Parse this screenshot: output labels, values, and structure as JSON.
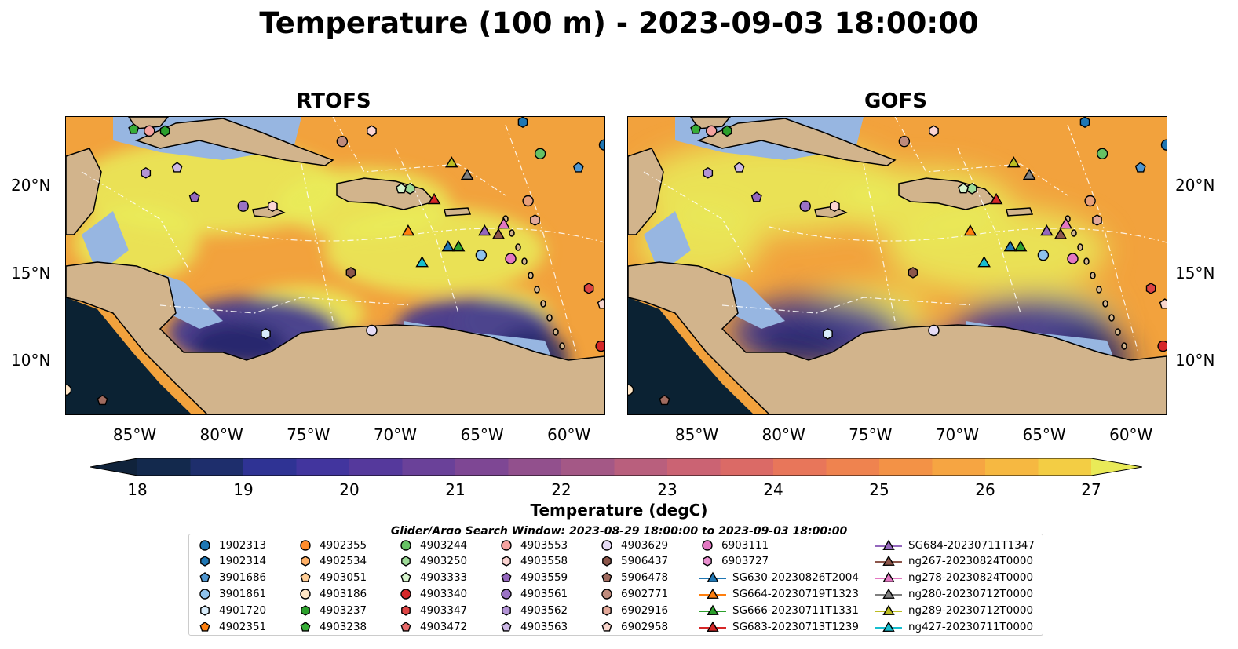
{
  "title": "Temperature (100 m) - 2023-09-03 18:00:00",
  "panels": [
    {
      "title": "RTOFS",
      "id": "rtofs"
    },
    {
      "title": "GOFS",
      "id": "gofs"
    }
  ],
  "lon_labels": [
    "85°W",
    "80°W",
    "75°W",
    "70°W",
    "65°W",
    "60°W"
  ],
  "lat_labels": [
    "20°N",
    "15°N",
    "10°N"
  ],
  "colorbar": {
    "label": "Temperature (degC)",
    "ticks": [
      "18",
      "19",
      "20",
      "21",
      "22",
      "23",
      "24",
      "25",
      "26",
      "27"
    ],
    "min": 18,
    "max": 27,
    "colors": [
      "#10233b",
      "#13294d",
      "#1e2e6c",
      "#2f3394",
      "#42359e",
      "#55399c",
      "#6a4199",
      "#7e4794",
      "#92508d",
      "#a45886",
      "#b95f7d",
      "#cb6373",
      "#db6a66",
      "#e8765a",
      "#ef834f",
      "#f39246",
      "#f6a542",
      "#f6b841",
      "#f3cd44",
      "#e9ea58"
    ]
  },
  "search_window": "Glider/Argo Search Window: 2023-08-29 18:00:00 to 2023-09-03 18:00:00",
  "colors": {
    "land": "#d2b48c",
    "shallow": "#97b6e1",
    "deep_water": "#0b2233",
    "warm": "#f2a23d",
    "hot": "#e9ec5b",
    "cool": "#3a3395"
  },
  "legend": [
    {
      "label": "1902313",
      "marker": "circle",
      "color": "#1f77b4"
    },
    {
      "label": "1902314",
      "marker": "hexagon",
      "color": "#1f77b4"
    },
    {
      "label": "3901686",
      "marker": "pentagon",
      "color": "#4f96d0"
    },
    {
      "label": "3901861",
      "marker": "circle",
      "color": "#8fc2ec"
    },
    {
      "label": "4901720",
      "marker": "hexagon",
      "color": "#d8ecfa"
    },
    {
      "label": "4902351",
      "marker": "pentagon",
      "color": "#ff7f0e"
    },
    {
      "label": "4902355",
      "marker": "circle",
      "color": "#ff8c2c"
    },
    {
      "label": "4902534",
      "marker": "hexagon",
      "color": "#ffb066"
    },
    {
      "label": "4903051",
      "marker": "pentagon",
      "color": "#ffcd96"
    },
    {
      "label": "4903186",
      "marker": "circle",
      "color": "#ffe6c6"
    },
    {
      "label": "4903237",
      "marker": "hexagon",
      "color": "#2ca02c"
    },
    {
      "label": "4903238",
      "marker": "pentagon",
      "color": "#37ad37"
    },
    {
      "label": "4903244",
      "marker": "circle",
      "color": "#66c164"
    },
    {
      "label": "4903250",
      "marker": "hexagon",
      "color": "#9edb98"
    },
    {
      "label": "4903333",
      "marker": "pentagon",
      "color": "#d7f4cd"
    },
    {
      "label": "4903340",
      "marker": "circle",
      "color": "#d62728"
    },
    {
      "label": "4903347",
      "marker": "hexagon",
      "color": "#dd4444"
    },
    {
      "label": "4903472",
      "marker": "pentagon",
      "color": "#e86a6a"
    },
    {
      "label": "4903553",
      "marker": "circle",
      "color": "#f5a3a0"
    },
    {
      "label": "4903558",
      "marker": "hexagon",
      "color": "#fbd4d2"
    },
    {
      "label": "4903559",
      "marker": "pentagon",
      "color": "#9467bd"
    },
    {
      "label": "4903561",
      "marker": "circle",
      "color": "#9a72c4"
    },
    {
      "label": "4903562",
      "marker": "hexagon",
      "color": "#b394d6"
    },
    {
      "label": "4903563",
      "marker": "pentagon",
      "color": "#cdb8e6"
    },
    {
      "label": "4903629",
      "marker": "circle",
      "color": "#e6dcf5"
    },
    {
      "label": "5906437",
      "marker": "hexagon",
      "color": "#8c564b"
    },
    {
      "label": "5906478",
      "marker": "pentagon",
      "color": "#a06b5f"
    },
    {
      "label": "6902771",
      "marker": "circle",
      "color": "#bf8b7c"
    },
    {
      "label": "6902916",
      "marker": "hexagon",
      "color": "#e3a99a"
    },
    {
      "label": "6902958",
      "marker": "pentagon",
      "color": "#f8d5cc"
    },
    {
      "label": "6903111",
      "marker": "circle",
      "color": "#e377c2"
    },
    {
      "label": "6903727",
      "marker": "hexagon",
      "color": "#ea8fd0"
    },
    {
      "label": "SG630-20230826T2004",
      "marker": "triangle",
      "color": "#1f77b4"
    },
    {
      "label": "SG664-20230719T1323",
      "marker": "triangle",
      "color": "#ff7f0e"
    },
    {
      "label": "SG666-20230711T1331",
      "marker": "triangle",
      "color": "#2ca02c"
    },
    {
      "label": "SG683-20230713T1239",
      "marker": "triangle",
      "color": "#d62728"
    },
    {
      "label": "SG684-20230711T1347",
      "marker": "triangle",
      "color": "#9467bd"
    },
    {
      "label": "ng267-20230824T0000",
      "marker": "triangle",
      "color": "#8c564b"
    },
    {
      "label": "ng278-20230824T0000",
      "marker": "triangle",
      "color": "#e377c2"
    },
    {
      "label": "ng280-20230712T0000",
      "marker": "triangle",
      "color": "#7f7f7f"
    },
    {
      "label": "ng289-20230712T0000",
      "marker": "triangle",
      "color": "#bcbd22"
    },
    {
      "label": "ng427-20230711T0000",
      "marker": "triangle",
      "color": "#17becf"
    }
  ],
  "map_markers": [
    {
      "m": "circle",
      "c": "#1f77b4",
      "lon": -58.0,
      "lat": 22.4
    },
    {
      "m": "hexagon",
      "c": "#1f77b4",
      "lon": -62.7,
      "lat": 23.7
    },
    {
      "m": "pentagon",
      "c": "#4f96d0",
      "lon": -59.5,
      "lat": 21.1
    },
    {
      "m": "circle",
      "c": "#8fc2ec",
      "lon": -65.1,
      "lat": 16.1
    },
    {
      "m": "hexagon",
      "c": "#d8ecfa",
      "lon": -77.5,
      "lat": 11.6
    },
    {
      "m": "circle",
      "c": "#ffe6c6",
      "lon": -89.0,
      "lat": 8.4
    },
    {
      "m": "hexagon",
      "c": "#2ca02c",
      "lon": -83.3,
      "lat": 23.2
    },
    {
      "m": "pentagon",
      "c": "#37ad37",
      "lon": -85.1,
      "lat": 23.3
    },
    {
      "m": "circle",
      "c": "#66c164",
      "lon": -61.7,
      "lat": 21.9
    },
    {
      "m": "hexagon",
      "c": "#9edb98",
      "lon": -69.2,
      "lat": 19.9
    },
    {
      "m": "pentagon",
      "c": "#d7f4cd",
      "lon": -69.7,
      "lat": 19.9
    },
    {
      "m": "circle",
      "c": "#d62728",
      "lon": -58.2,
      "lat": 10.9
    },
    {
      "m": "hexagon",
      "c": "#dd4444",
      "lon": -58.9,
      "lat": 14.2
    },
    {
      "m": "pentagon",
      "c": "#f8d5cc",
      "lon": -58.1,
      "lat": 13.3
    },
    {
      "m": "circle",
      "c": "#f5a3a0",
      "lon": -84.2,
      "lat": 23.2
    },
    {
      "m": "hexagon",
      "c": "#fbd4d2",
      "lon": -71.4,
      "lat": 23.2
    },
    {
      "m": "pentagon",
      "c": "#9467bd",
      "lon": -81.6,
      "lat": 19.4
    },
    {
      "m": "circle",
      "c": "#9a72c4",
      "lon": -78.8,
      "lat": 18.9
    },
    {
      "m": "hexagon",
      "c": "#b394d6",
      "lon": -84.4,
      "lat": 20.8
    },
    {
      "m": "pentagon",
      "c": "#cdb8e6",
      "lon": -82.6,
      "lat": 21.1
    },
    {
      "m": "circle",
      "c": "#e6dcf5",
      "lon": -71.4,
      "lat": 11.8
    },
    {
      "m": "hexagon",
      "c": "#8c564b",
      "lon": -72.6,
      "lat": 15.1
    },
    {
      "m": "pentagon",
      "c": "#a06b5f",
      "lon": -86.9,
      "lat": 7.8
    },
    {
      "m": "circle",
      "c": "#bf8b7c",
      "lon": -73.1,
      "lat": 22.6
    },
    {
      "m": "hexagon",
      "c": "#e3a99a",
      "lon": -62.0,
      "lat": 18.1
    },
    {
      "m": "circle",
      "c": "#e8a07a",
      "lon": -62.4,
      "lat": 19.2
    },
    {
      "m": "circle",
      "c": "#e377c2",
      "lon": -63.4,
      "lat": 15.9
    },
    {
      "m": "hexagon",
      "c": "#fbd4d2",
      "lon": -77.1,
      "lat": 18.9
    },
    {
      "m": "triangle",
      "c": "#ff7f0e",
      "lon": -69.3,
      "lat": 17.5
    },
    {
      "m": "triangle",
      "c": "#2ca02c",
      "lon": -66.4,
      "lat": 16.6
    },
    {
      "m": "triangle",
      "c": "#1f77b4",
      "lon": -67.0,
      "lat": 16.6
    },
    {
      "m": "triangle",
      "c": "#d62728",
      "lon": -67.8,
      "lat": 19.3
    },
    {
      "m": "triangle",
      "c": "#9467bd",
      "lon": -64.9,
      "lat": 17.5
    },
    {
      "m": "triangle",
      "c": "#8c564b",
      "lon": -64.1,
      "lat": 17.3
    },
    {
      "m": "triangle",
      "c": "#e377c2",
      "lon": -63.8,
      "lat": 17.9
    },
    {
      "m": "triangle",
      "c": "#7f7f7f",
      "lon": -65.9,
      "lat": 20.7
    },
    {
      "m": "triangle",
      "c": "#bcbd22",
      "lon": -66.8,
      "lat": 21.4
    },
    {
      "m": "triangle",
      "c": "#17becf",
      "lon": -68.5,
      "lat": 15.7
    }
  ]
}
